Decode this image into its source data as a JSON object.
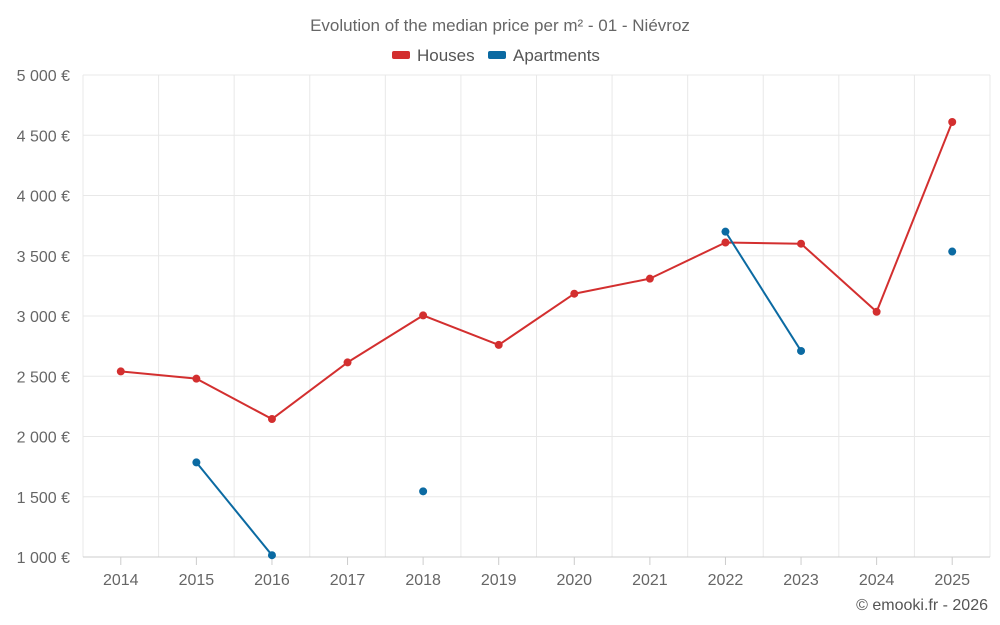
{
  "chart_data": {
    "type": "line",
    "title": "Evolution of the median price per m² - 01 - Niévroz",
    "categories": [
      "2014",
      "2015",
      "2016",
      "2017",
      "2018",
      "2019",
      "2020",
      "2021",
      "2022",
      "2023",
      "2024",
      "2025"
    ],
    "series": [
      {
        "name": "Houses",
        "color": "#d32f2f",
        "values": [
          2540,
          2480,
          2145,
          2615,
          3005,
          2760,
          3185,
          3310,
          3610,
          3600,
          3035,
          4610
        ]
      },
      {
        "name": "Apartments",
        "color": "#0b6aa2",
        "values": [
          null,
          1785,
          1015,
          null,
          1545,
          null,
          null,
          null,
          3700,
          2710,
          null,
          3535
        ]
      }
    ],
    "ylim": [
      1000,
      5000
    ],
    "yticks": [
      1000,
      1500,
      2000,
      2500,
      3000,
      3500,
      4000,
      4500,
      5000
    ],
    "ytick_labels": [
      "1 000 €",
      "1 500 €",
      "2 000 €",
      "2 500 €",
      "3 000 €",
      "3 500 €",
      "4 000 €",
      "4 500 €",
      "5 000 €"
    ],
    "xlabel": "",
    "ylabel": "",
    "grid": true,
    "legend_position": "top-center"
  },
  "credit": "© emooki.fr - 2026"
}
